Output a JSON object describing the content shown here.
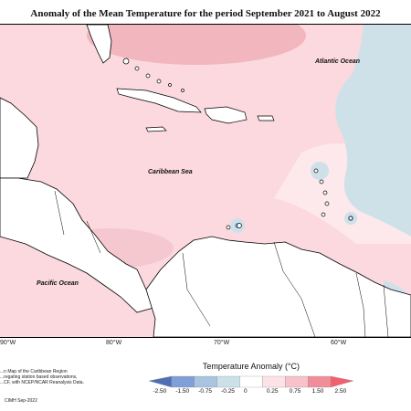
{
  "title": "Anomaly of the Mean Temperature for the period September 2021 to August 2022",
  "ocean_labels": {
    "atlantic": "Atlantic Ocean",
    "caribbean": "Caribbean Sea",
    "pacific": "Pacific Ocean"
  },
  "longitude_labels": [
    "90°W",
    "80°W",
    "70°W",
    "60°W"
  ],
  "legend": {
    "title": "Temperature Anomaly (°C)",
    "ticks": [
      "-2.50",
      "-1.50",
      "-0.75",
      "-0.25",
      "0",
      "0.25",
      "0.75",
      "1.50",
      "2.50"
    ],
    "colors": [
      "#4f6fb4",
      "#7f9fd8",
      "#a9c4e0",
      "#cce0e8",
      "#ffffff",
      "#fde3e7",
      "#f7c2c9",
      "#f08f9a",
      "#f25f6d"
    ]
  },
  "source_note": [
    "...n Map of the Caribbean Region",
    "...regating station based observations,",
    "...CF, with NCEP/NCAR Reanalysis Data."
  ],
  "credit": "CIMH Sep-2022",
  "colors": {
    "warm_light": "#fbd9de",
    "warm_mid": "#f2b6bf",
    "cool_light": "#cfe1e8",
    "land": "#ffffff",
    "outline": "#000000"
  }
}
